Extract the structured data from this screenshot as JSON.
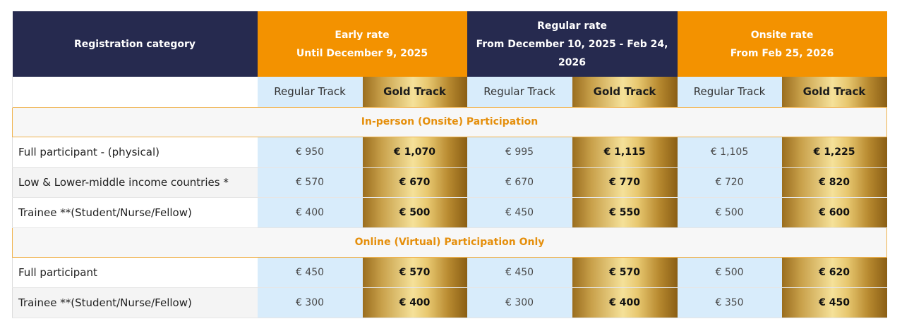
{
  "table": {
    "headers": {
      "category": "Registration category",
      "early": {
        "title": "Early rate",
        "subtitle": "Until December 9, 2025"
      },
      "regular": {
        "title": "Regular rate",
        "subtitle": "From December 10, 2025 - Feb 24, 2026"
      },
      "onsite": {
        "title": "Onsite rate",
        "subtitle": "From Feb 25, 2026"
      }
    },
    "track_labels": {
      "regular": "Regular Track",
      "gold": "Gold Track"
    },
    "sections": [
      {
        "title": "In-person (Onsite) Participation",
        "rows": [
          {
            "label": "Full participant - (physical)",
            "prices": [
              "€ 950",
              "€ 1,070",
              "€ 995",
              "€ 1,115",
              "€ 1,105",
              "€ 1,225"
            ]
          },
          {
            "label": "Low & Lower-middle income countries *",
            "prices": [
              "€ 570",
              "€ 670",
              "€ 670",
              "€ 770",
              "€ 720",
              "€ 820"
            ]
          },
          {
            "label": "Trainee **(Student/Nurse/Fellow)",
            "prices": [
              "€ 400",
              "€ 500",
              "€ 450",
              "€ 550",
              "€ 500",
              "€ 600"
            ]
          }
        ]
      },
      {
        "title": "Online (Virtual) Participation Only",
        "rows": [
          {
            "label": "Full participant",
            "prices": [
              "€ 450",
              "€ 570",
              "€ 450",
              "€ 570",
              "€ 500",
              "€ 620"
            ]
          },
          {
            "label": "Trainee **(Student/Nurse/Fellow)",
            "prices": [
              "€ 300",
              "€ 400",
              "€ 300",
              "€ 400",
              "€ 350",
              "€ 450"
            ]
          }
        ]
      }
    ]
  },
  "colors": {
    "navy": "#262a4f",
    "orange": "#f39200",
    "regular_track_bg": "#d8ecfb",
    "section_text": "#e58f0c"
  }
}
